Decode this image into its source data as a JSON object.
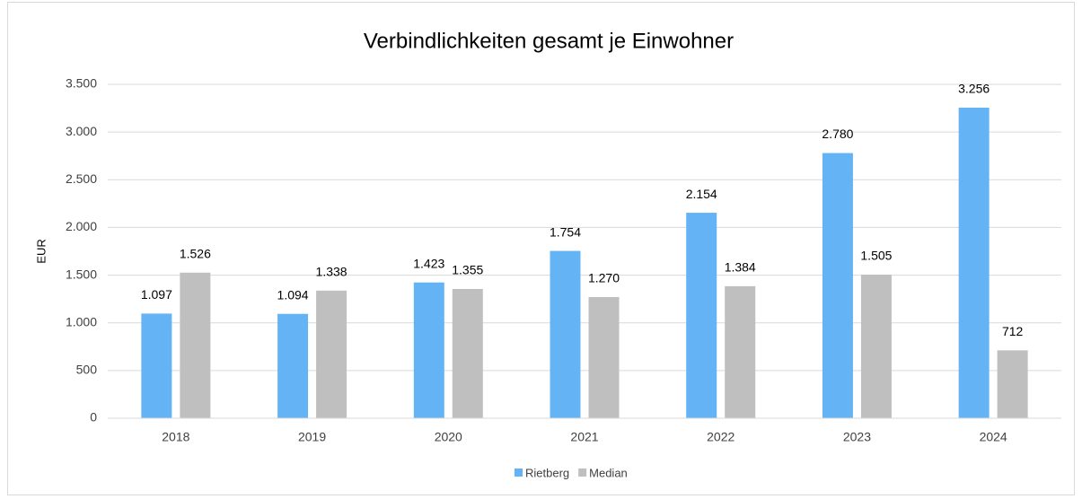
{
  "chart_data": {
    "type": "bar",
    "title": "Verbindlichkeiten gesamt je Einwohner",
    "y_label": "EUR",
    "categories": [
      "2018",
      "2019",
      "2020",
      "2021",
      "2022",
      "2023",
      "2024"
    ],
    "series": [
      {
        "name": "Rietberg",
        "color": "#64b4f5",
        "values": [
          1097,
          1094,
          1423,
          1754,
          2154,
          2780,
          3256
        ],
        "value_labels": [
          "1.097",
          "1.094",
          "1.423",
          "1.754",
          "2.154",
          "2.780",
          "3.256"
        ]
      },
      {
        "name": "Median",
        "color": "#bfbfbf",
        "values": [
          1526,
          1338,
          1355,
          1270,
          1384,
          1505,
          712
        ],
        "value_labels": [
          "1.526",
          "1.338",
          "1.355",
          "1.270",
          "1.384",
          "1.505",
          "712"
        ]
      }
    ],
    "ylim": [
      0,
      3500
    ],
    "yticks": [
      0,
      500,
      {
        "value": 1000,
        "label": "1.000"
      },
      {
        "value": 1500,
        "label": "1.500"
      },
      {
        "value": 2000,
        "label": "2.000"
      },
      {
        "value": 2500,
        "label": "2.500"
      },
      {
        "value": 3000,
        "label": "3.000"
      },
      {
        "value": 3500,
        "label": "3.500"
      }
    ],
    "grid": true,
    "legend": "bottom"
  }
}
